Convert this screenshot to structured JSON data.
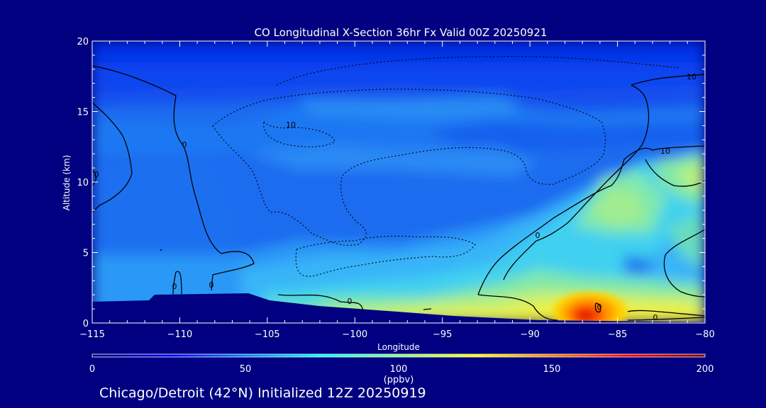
{
  "chart_data": {
    "type": "heatmap",
    "title": "CO Longitudinal X-Section 36hr  Fx Valid 00Z 20250921",
    "xlabel": "Longitude",
    "ylabel": "Altitude (km)",
    "xlim": [
      -115,
      -80
    ],
    "ylim": [
      0,
      20
    ],
    "x_ticks": [
      -115,
      -110,
      -105,
      -100,
      -95,
      -90,
      -85,
      -80
    ],
    "x_tick_labels": [
      "−115",
      "−110",
      "−105",
      "−100",
      "−95",
      "−90",
      "−85",
      "−80"
    ],
    "y_ticks": [
      0,
      5,
      10,
      15,
      20
    ],
    "y_tick_labels": [
      "0",
      "5",
      "10",
      "15",
      "20"
    ],
    "colorbar": {
      "min": 0,
      "max": 200,
      "ticks": [
        0,
        50,
        100,
        150,
        200
      ],
      "tick_labels": [
        "0",
        "50",
        "100",
        "150",
        "200"
      ],
      "units": "(ppbv)",
      "colors": [
        "#000080",
        "#0000ff",
        "#0080ff",
        "#00ffff",
        "#80ff80",
        "#ffff00",
        "#ff8000",
        "#ff0000",
        "#800000"
      ]
    },
    "contour_labels": [
      "10",
      "0",
      "0",
      "10",
      "0",
      "0",
      "0",
      "0",
      "0",
      "10",
      "0"
    ]
  },
  "footer": "Chicago/Detroit (42°N) Initialized 12Z 20250919"
}
